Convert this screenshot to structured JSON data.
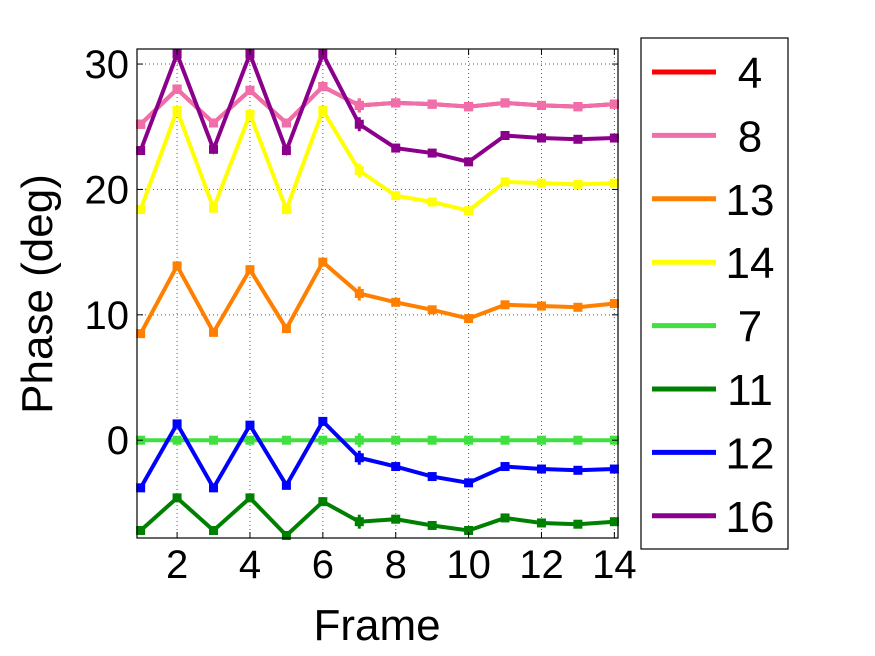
{
  "chart_data": {
    "type": "line",
    "xlabel": "Frame",
    "ylabel": "Phase (deg)",
    "xlim": [
      0.9,
      14.1
    ],
    "ylim": [
      -7.8,
      31.2
    ],
    "x_ticks": [
      2,
      4,
      6,
      8,
      10,
      12,
      14
    ],
    "y_ticks": [
      0,
      10,
      20,
      30
    ],
    "grid": true,
    "legend_position": "right",
    "x": [
      1,
      2,
      3,
      4,
      5,
      6,
      7,
      8,
      9,
      10,
      11,
      12,
      13,
      14
    ],
    "series": [
      {
        "name": "4",
        "color": "#ff0000",
        "values": [
          25.2,
          28.0,
          25.3,
          27.9,
          25.3,
          28.2,
          26.7,
          26.9,
          26.8,
          26.6,
          26.9,
          26.7,
          26.6,
          26.8
        ]
      },
      {
        "name": "8",
        "color": "#f06eaa",
        "values": [
          25.2,
          28.0,
          25.3,
          27.9,
          25.3,
          28.2,
          26.7,
          26.9,
          26.8,
          26.6,
          26.9,
          26.7,
          26.6,
          26.8
        ]
      },
      {
        "name": "13",
        "color": "#ff8000",
        "values": [
          8.5,
          13.9,
          8.6,
          13.6,
          8.9,
          14.2,
          11.7,
          11.0,
          10.4,
          9.7,
          10.8,
          10.7,
          10.6,
          10.9
        ]
      },
      {
        "name": "14",
        "color": "#ffff00",
        "values": [
          18.4,
          26.3,
          18.5,
          26.0,
          18.4,
          26.3,
          21.5,
          19.5,
          19.0,
          18.3,
          20.6,
          20.5,
          20.4,
          20.5
        ]
      },
      {
        "name": "7",
        "color": "#40e040",
        "values": [
          0,
          0,
          0,
          0,
          0,
          0,
          0,
          0,
          0,
          0,
          0,
          0,
          0,
          0
        ]
      },
      {
        "name": "11",
        "color": "#008000",
        "values": [
          -7.2,
          -4.6,
          -7.2,
          -4.6,
          -7.6,
          -4.9,
          -6.5,
          -6.3,
          -6.8,
          -7.2,
          -6.2,
          -6.6,
          -6.7,
          -6.5
        ]
      },
      {
        "name": "12",
        "color": "#0000ff",
        "values": [
          -3.8,
          1.3,
          -3.8,
          1.2,
          -3.6,
          1.5,
          -1.4,
          -2.1,
          -2.9,
          -3.4,
          -2.1,
          -2.3,
          -2.4,
          -2.3
        ]
      },
      {
        "name": "16",
        "color": "#8b008b",
        "values": [
          23.1,
          30.8,
          23.2,
          30.8,
          23.1,
          30.8,
          25.2,
          23.3,
          22.9,
          22.2,
          24.3,
          24.1,
          24.0,
          24.1
        ]
      }
    ]
  }
}
